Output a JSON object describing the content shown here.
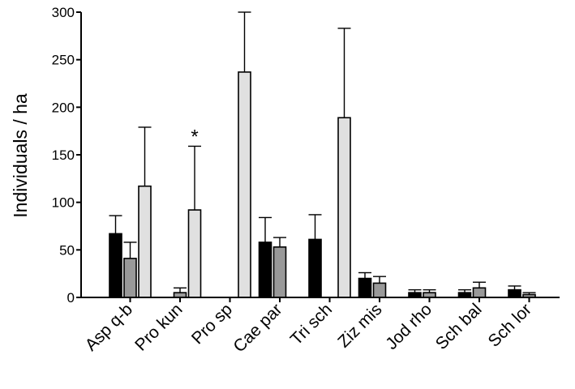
{
  "chart_data": {
    "type": "bar",
    "title": "",
    "xlabel": "",
    "ylabel": "Individuals / ha",
    "ylim": [
      0,
      300
    ],
    "yticks": [
      "0",
      "50",
      "100",
      "150",
      "200",
      "250",
      "300"
    ],
    "grid": false,
    "legend": "none",
    "categories": [
      "Asp q-b",
      "Pro kun",
      "Pro sp",
      "Cae par",
      "Tri sch",
      "Ziz mis",
      "Jod rho",
      "Sch bal",
      "Sch lor"
    ],
    "series": [
      {
        "color": "#000000",
        "values": [
          67,
          0,
          0,
          58,
          61,
          20,
          5,
          5,
          8
        ],
        "errors": [
          19,
          0,
          0,
          26,
          26,
          6,
          3,
          3,
          4
        ]
      },
      {
        "color": "#999999",
        "values": [
          41,
          5,
          0,
          53,
          0,
          15,
          5,
          10,
          3
        ],
        "errors": [
          17,
          5,
          0,
          10,
          0,
          7,
          3,
          6,
          2
        ]
      },
      {
        "color": "#e0e0e0",
        "values": [
          117,
          92,
          237,
          0,
          189,
          0,
          0,
          0,
          0
        ],
        "errors": [
          62,
          67,
          63,
          0,
          94,
          0,
          0,
          0,
          0
        ]
      }
    ],
    "annotations": [
      {
        "text": "*",
        "category": "Pro kun"
      }
    ]
  }
}
